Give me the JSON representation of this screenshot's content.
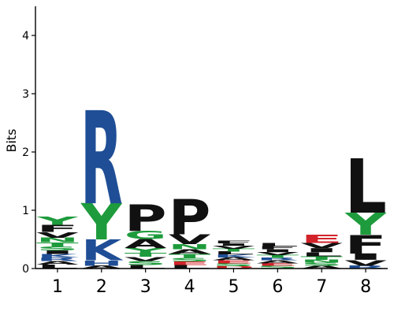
{
  "chart_data": {
    "type": "sequence-logo",
    "ylabel": "Bits",
    "ylim": [
      0,
      4.5
    ],
    "yticks": [
      "0",
      "1",
      "2",
      "3",
      "4"
    ],
    "ytick_values": [
      0,
      1,
      2,
      3,
      4
    ],
    "positions": [
      "1",
      "2",
      "3",
      "4",
      "5",
      "6",
      "7",
      "8"
    ],
    "colors": {
      "hydrophobic": "#111111",
      "polar": "#1e9b3c",
      "basic": "#1f4e96",
      "acidic": "#d2232a",
      "other": "#e89ab0"
    },
    "stacks": [
      [
        {
          "letter": "L",
          "bits": 0.07,
          "group": "hydrophobic"
        },
        {
          "letter": "A",
          "bits": 0.06,
          "group": "hydrophobic"
        },
        {
          "letter": "R",
          "bits": 0.06,
          "group": "basic"
        },
        {
          "letter": "K",
          "bits": 0.06,
          "group": "basic"
        },
        {
          "letter": "I",
          "bits": 0.06,
          "group": "hydrophobic"
        },
        {
          "letter": "S",
          "bits": 0.07,
          "group": "polar"
        },
        {
          "letter": "T",
          "bits": 0.07,
          "group": "polar"
        },
        {
          "letter": "N",
          "bits": 0.08,
          "group": "polar"
        },
        {
          "letter": "V",
          "bits": 0.1,
          "group": "hydrophobic"
        },
        {
          "letter": "F",
          "bits": 0.12,
          "group": "hydrophobic"
        },
        {
          "letter": "Y",
          "bits": 0.14,
          "group": "polar"
        }
      ],
      [
        {
          "letter": "A",
          "bits": 0.05,
          "group": "hydrophobic"
        },
        {
          "letter": "H",
          "bits": 0.09,
          "group": "basic"
        },
        {
          "letter": "K",
          "bits": 0.36,
          "group": "basic"
        },
        {
          "letter": "Y",
          "bits": 0.62,
          "group": "polar"
        },
        {
          "letter": "R",
          "bits": 1.6,
          "group": "basic"
        }
      ],
      [
        {
          "letter": "L",
          "bits": 0.06,
          "group": "hydrophobic"
        },
        {
          "letter": "S",
          "bits": 0.07,
          "group": "polar"
        },
        {
          "letter": "V",
          "bits": 0.07,
          "group": "hydrophobic"
        },
        {
          "letter": "T",
          "bits": 0.07,
          "group": "polar"
        },
        {
          "letter": "Y",
          "bits": 0.08,
          "group": "polar"
        },
        {
          "letter": "A",
          "bits": 0.16,
          "group": "hydrophobic"
        },
        {
          "letter": "G",
          "bits": 0.14,
          "group": "polar"
        },
        {
          "letter": "P",
          "bits": 0.46,
          "group": "hydrophobic"
        }
      ],
      [
        {
          "letter": "L",
          "bits": 0.06,
          "group": "hydrophobic"
        },
        {
          "letter": "E",
          "bits": 0.06,
          "group": "acidic"
        },
        {
          "letter": "S",
          "bits": 0.06,
          "group": "polar"
        },
        {
          "letter": "T",
          "bits": 0.07,
          "group": "polar"
        },
        {
          "letter": "A",
          "bits": 0.08,
          "group": "hydrophobic"
        },
        {
          "letter": "N",
          "bits": 0.09,
          "group": "polar"
        },
        {
          "letter": "V",
          "bits": 0.17,
          "group": "hydrophobic"
        },
        {
          "letter": "P",
          "bits": 0.61,
          "group": "hydrophobic"
        }
      ],
      [
        {
          "letter": "D",
          "bits": 0.04,
          "group": "acidic"
        },
        {
          "letter": "S",
          "bits": 0.05,
          "group": "polar"
        },
        {
          "letter": "E",
          "bits": 0.05,
          "group": "acidic"
        },
        {
          "letter": "A",
          "bits": 0.05,
          "group": "hydrophobic"
        },
        {
          "letter": "K",
          "bits": 0.05,
          "group": "basic"
        },
        {
          "letter": "L",
          "bits": 0.05,
          "group": "hydrophobic"
        },
        {
          "letter": "T",
          "bits": 0.05,
          "group": "polar"
        },
        {
          "letter": "V",
          "bits": 0.05,
          "group": "hydrophobic"
        },
        {
          "letter": "I",
          "bits": 0.04,
          "group": "hydrophobic"
        },
        {
          "letter": "F",
          "bits": 0.04,
          "group": "hydrophobic"
        }
      ],
      [
        {
          "letter": "S",
          "bits": 0.05,
          "group": "polar"
        },
        {
          "letter": "E",
          "bits": 0.04,
          "group": "acidic"
        },
        {
          "letter": "A",
          "bits": 0.05,
          "group": "hydrophobic"
        },
        {
          "letter": "R",
          "bits": 0.04,
          "group": "basic"
        },
        {
          "letter": "T",
          "bits": 0.05,
          "group": "polar"
        },
        {
          "letter": "V",
          "bits": 0.05,
          "group": "hydrophobic"
        },
        {
          "letter": "I",
          "bits": 0.05,
          "group": "hydrophobic"
        },
        {
          "letter": "F",
          "bits": 0.05,
          "group": "hydrophobic"
        },
        {
          "letter": "L",
          "bits": 0.06,
          "group": "hydrophobic"
        }
      ],
      [
        {
          "letter": "A",
          "bits": 0.05,
          "group": "hydrophobic"
        },
        {
          "letter": "S",
          "bits": 0.05,
          "group": "polar"
        },
        {
          "letter": "N",
          "bits": 0.05,
          "group": "polar"
        },
        {
          "letter": "T",
          "bits": 0.06,
          "group": "polar"
        },
        {
          "letter": "L",
          "bits": 0.07,
          "group": "hydrophobic"
        },
        {
          "letter": "I",
          "bits": 0.07,
          "group": "hydrophobic"
        },
        {
          "letter": "V",
          "bits": 0.09,
          "group": "hydrophobic"
        },
        {
          "letter": "E",
          "bits": 0.14,
          "group": "acidic"
        }
      ],
      [
        {
          "letter": "R",
          "bits": 0.05,
          "group": "basic"
        },
        {
          "letter": "V",
          "bits": 0.1,
          "group": "hydrophobic"
        },
        {
          "letter": "I",
          "bits": 0.11,
          "group": "hydrophobic"
        },
        {
          "letter": "F",
          "bits": 0.32,
          "group": "hydrophobic"
        },
        {
          "letter": "Y",
          "bits": 0.38,
          "group": "polar"
        },
        {
          "letter": "L",
          "bits": 0.93,
          "group": "hydrophobic"
        }
      ]
    ]
  }
}
